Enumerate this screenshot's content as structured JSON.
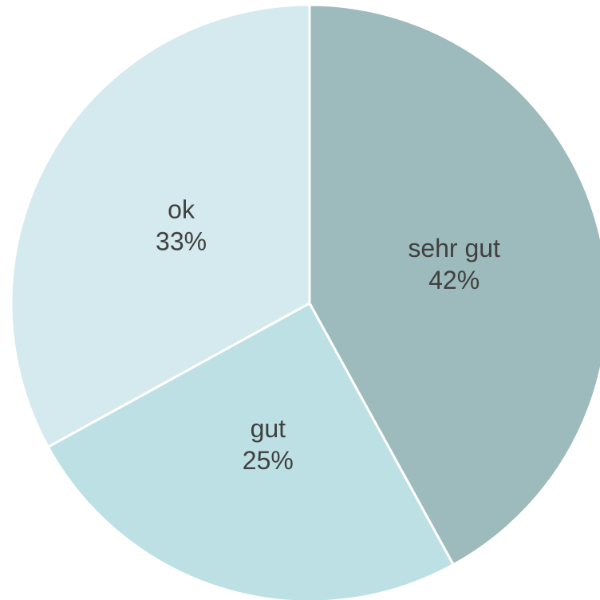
{
  "chart_data": {
    "type": "pie",
    "categories": [
      "sehr gut",
      "gut",
      "ok"
    ],
    "values": [
      42,
      25,
      33
    ],
    "value_labels": [
      "42%",
      "25%",
      "33%"
    ],
    "colors": [
      "#9dbbbc",
      "#bde0e4",
      "#d5eaee"
    ]
  }
}
